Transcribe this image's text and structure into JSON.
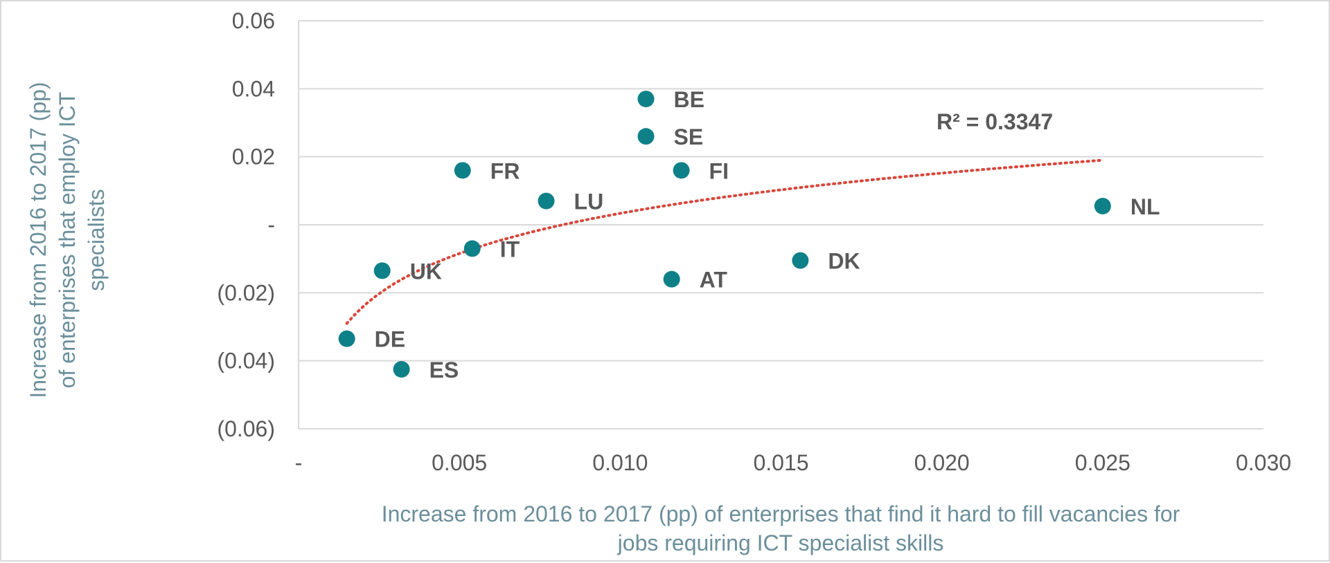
{
  "chart_data": {
    "type": "scatter",
    "xlabel_lines": [
      "Increase from 2016 to 2017 (pp) of enterprises that find it hard to fill vacancies for",
      "jobs requiring ICT specialist skills"
    ],
    "ylabel_lines": [
      "Increase from 2016 to 2017 (pp)",
      "of enterprises that employ ICT",
      "specialists"
    ],
    "xlim": [
      0,
      0.03
    ],
    "ylim": [
      -0.06,
      0.06
    ],
    "x_ticks": [
      {
        "value": 0,
        "label": "-"
      },
      {
        "value": 0.005,
        "label": "0.005"
      },
      {
        "value": 0.01,
        "label": "0.010"
      },
      {
        "value": 0.015,
        "label": "0.015"
      },
      {
        "value": 0.02,
        "label": "0.020"
      },
      {
        "value": 0.025,
        "label": "0.025"
      },
      {
        "value": 0.03,
        "label": "0.030"
      }
    ],
    "y_ticks": [
      {
        "value": 0.06,
        "label": "0.06"
      },
      {
        "value": 0.04,
        "label": "0.04"
      },
      {
        "value": 0.02,
        "label": "0.02"
      },
      {
        "value": 0,
        "label": "-"
      },
      {
        "value": -0.02,
        "label": "(0.02)"
      },
      {
        "value": -0.04,
        "label": "(0.04)"
      },
      {
        "value": -0.06,
        "label": "(0.06)"
      }
    ],
    "grid": "horizontal",
    "points": [
      {
        "label": "BE",
        "x": 0.0108,
        "y": 0.037
      },
      {
        "label": "SE",
        "x": 0.0108,
        "y": 0.026
      },
      {
        "label": "FR",
        "x": 0.0051,
        "y": 0.016
      },
      {
        "label": "FI",
        "x": 0.0119,
        "y": 0.016
      },
      {
        "label": "LU",
        "x": 0.0077,
        "y": 0.007
      },
      {
        "label": "NL",
        "x": 0.025,
        "y": 0.0055
      },
      {
        "label": "IT",
        "x": 0.0054,
        "y": -0.007
      },
      {
        "label": "DK",
        "x": 0.0156,
        "y": -0.0105
      },
      {
        "label": "UK",
        "x": 0.0026,
        "y": -0.0135
      },
      {
        "label": "AT",
        "x": 0.0116,
        "y": -0.016
      },
      {
        "label": "DE",
        "x": 0.0015,
        "y": -0.0335
      },
      {
        "label": "ES",
        "x": 0.0032,
        "y": -0.0425
      }
    ],
    "trendline": {
      "type": "logarithmic",
      "x_range": [
        0.0015,
        0.025
      ],
      "y_at_start": -0.029,
      "y_at_end": 0.019,
      "r2_label": "R² = 0.3347",
      "color": "#d9463a"
    },
    "marker_color": "#0e8088"
  }
}
